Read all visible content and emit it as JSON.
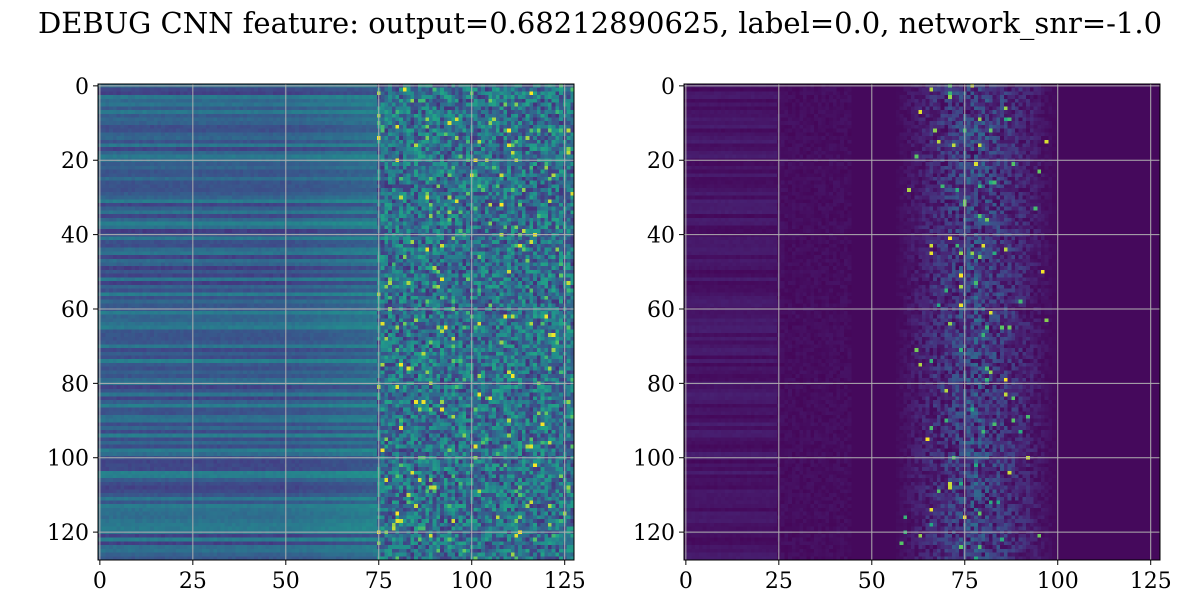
{
  "figure": {
    "title": "DEBUG CNN feature: output=0.68212890625, label=0.0, network_snr=-1.0"
  },
  "chart_data": [
    {
      "type": "heatmap",
      "colormap": "viridis",
      "rows": 128,
      "cols": 128,
      "xlim": [
        -0.5,
        127.5
      ],
      "ylim": [
        127.5,
        -0.5
      ],
      "xticks": [
        0,
        25,
        50,
        75,
        100,
        125
      ],
      "yticks": [
        0,
        20,
        40,
        60,
        80,
        100,
        120
      ],
      "grid": true,
      "description_of_values": "left panel: per-row banded intensity on columns 0-75, noisy higher values on columns 75-127"
    },
    {
      "type": "heatmap",
      "colormap": "viridis",
      "rows": 128,
      "cols": 128,
      "xlim": [
        -0.5,
        127.5
      ],
      "ylim": [
        127.5,
        -0.5
      ],
      "xticks": [
        0,
        25,
        50,
        75,
        100,
        125
      ],
      "yticks": [
        0,
        20,
        40,
        60,
        80,
        100,
        120
      ],
      "grid": true,
      "description_of_values": "right panel: mostly low values, speckled activity concentrated around columns 60-100 peaking near column 78"
    }
  ],
  "colors": {
    "grid": "#b0b0b0",
    "viridis_low": "#440154",
    "viridis_high": "#fde725"
  }
}
